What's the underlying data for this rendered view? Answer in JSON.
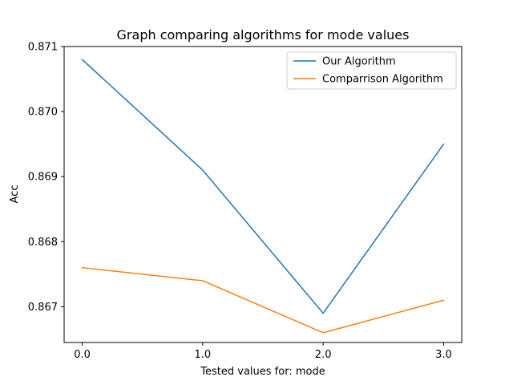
{
  "chart_data": {
    "type": "line",
    "title": "Graph comparing algorithms for mode values",
    "xlabel": "Tested values for: mode",
    "ylabel": "Acc",
    "x": [
      0.0,
      1.0,
      2.0,
      3.0
    ],
    "x_tick_labels": [
      "0.0",
      "1.0",
      "2.0",
      "3.0"
    ],
    "y_ticks": [
      0.867,
      0.868,
      0.869,
      0.87,
      0.871
    ],
    "y_tick_labels": [
      "0.867",
      "0.868",
      "0.869",
      "0.870",
      "0.871"
    ],
    "xlim": [
      -0.15,
      3.15
    ],
    "ylim": [
      0.86645,
      0.871
    ],
    "grid": false,
    "legend_position": "top-right",
    "series": [
      {
        "name": "Our Algorithm",
        "color": "#1f77b4",
        "values": [
          0.8708,
          0.8691,
          0.8669,
          0.8695
        ]
      },
      {
        "name": "Comparrison Algorithm",
        "color": "#ff7f0e",
        "values": [
          0.8676,
          0.8674,
          0.8666,
          0.8671
        ]
      }
    ]
  }
}
